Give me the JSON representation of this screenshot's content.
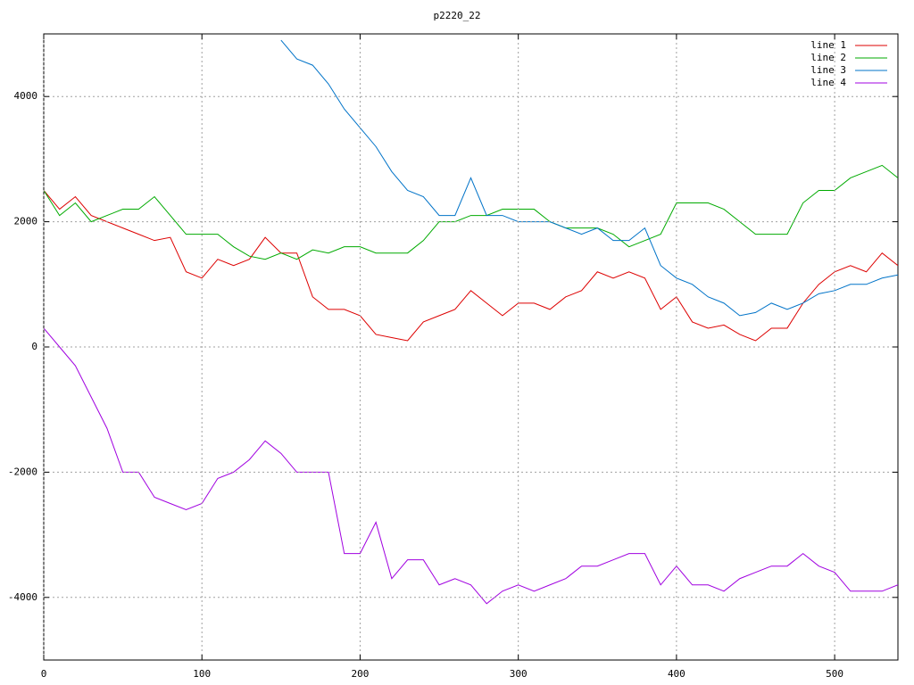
{
  "chart_data": {
    "type": "line",
    "title": "p2220_22",
    "x": [
      0,
      10,
      20,
      30,
      40,
      50,
      60,
      70,
      80,
      90,
      100,
      110,
      120,
      130,
      140,
      150,
      160,
      170,
      180,
      190,
      200,
      210,
      220,
      230,
      240,
      250,
      260,
      270,
      280,
      290,
      300,
      310,
      320,
      330,
      340,
      350,
      360,
      370,
      380,
      390,
      400,
      410,
      420,
      430,
      440,
      450,
      460,
      470,
      480,
      490,
      500,
      510,
      520,
      530,
      540
    ],
    "series": [
      {
        "name": "line 1",
        "color": "#dd0000",
        "values": [
          2500,
          2200,
          2400,
          2100,
          2000,
          1900,
          1800,
          1700,
          1750,
          1200,
          1100,
          1400,
          1300,
          1400,
          1750,
          1500,
          1500,
          800,
          600,
          600,
          500,
          200,
          150,
          100,
          400,
          500,
          600,
          900,
          700,
          500,
          700,
          700,
          600,
          800,
          900,
          1200,
          1100,
          1200,
          1100,
          600,
          800,
          400,
          300,
          350,
          200,
          100,
          300,
          300,
          700,
          1000,
          1200,
          1300,
          1200,
          1500,
          1300
        ]
      },
      {
        "name": "line 2",
        "color": "#00aa00",
        "values": [
          2500,
          2100,
          2300,
          2000,
          2100,
          2200,
          2200,
          2400,
          2100,
          1800,
          1800,
          1800,
          1600,
          1450,
          1400,
          1500,
          1400,
          1550,
          1500,
          1600,
          1600,
          1500,
          1500,
          1500,
          1700,
          2000,
          2000,
          2100,
          2100,
          2200,
          2200,
          2200,
          2000,
          1900,
          1900,
          1900,
          1800,
          1600,
          1700,
          1800,
          2300,
          2300,
          2300,
          2200,
          2000,
          1800,
          1800,
          1800,
          2300,
          2500,
          2500,
          2700,
          2800,
          2900,
          2700
        ]
      },
      {
        "name": "line 3",
        "color": "#0073c8",
        "values": [
          null,
          null,
          null,
          null,
          null,
          null,
          null,
          null,
          null,
          null,
          null,
          null,
          null,
          null,
          null,
          4900,
          4600,
          4500,
          4200,
          3800,
          3500,
          3200,
          2800,
          2500,
          2400,
          2100,
          2100,
          2700,
          2100,
          2100,
          2000,
          2000,
          2000,
          1900,
          1800,
          1900,
          1700,
          1700,
          1900,
          1300,
          1100,
          1000,
          800,
          700,
          500,
          550,
          700,
          600,
          700,
          850,
          900,
          1000,
          1000,
          1100,
          1150
        ]
      },
      {
        "name": "line 4",
        "color": "#a000e0",
        "values": [
          300,
          0,
          -300,
          -800,
          -1300,
          -2000,
          -2000,
          -2400,
          -2500,
          -2600,
          -2500,
          -2100,
          -2000,
          -1800,
          -1500,
          -1700,
          -2000,
          -2000,
          -2000,
          -3300,
          -3300,
          -2800,
          -3700,
          -3400,
          -3400,
          -3800,
          -3700,
          -3800,
          -4100,
          -3900,
          -3800,
          -3900,
          -3800,
          -3700,
          -3500,
          -3500,
          -3400,
          -3300,
          -3300,
          -3800,
          -3500,
          -3800,
          -3800,
          -3900,
          -3700,
          -3600,
          -3500,
          -3500,
          -3300,
          -3500,
          -3600,
          -3900,
          -3900,
          -3900,
          -3800
        ]
      }
    ],
    "xlim": [
      0,
      540
    ],
    "ylim": [
      -5000,
      5000
    ],
    "xticks": [
      0,
      100,
      200,
      300,
      400,
      500
    ],
    "yticks": [
      -4000,
      -2000,
      0,
      2000,
      4000
    ],
    "grid": true,
    "legend": "top-right"
  }
}
